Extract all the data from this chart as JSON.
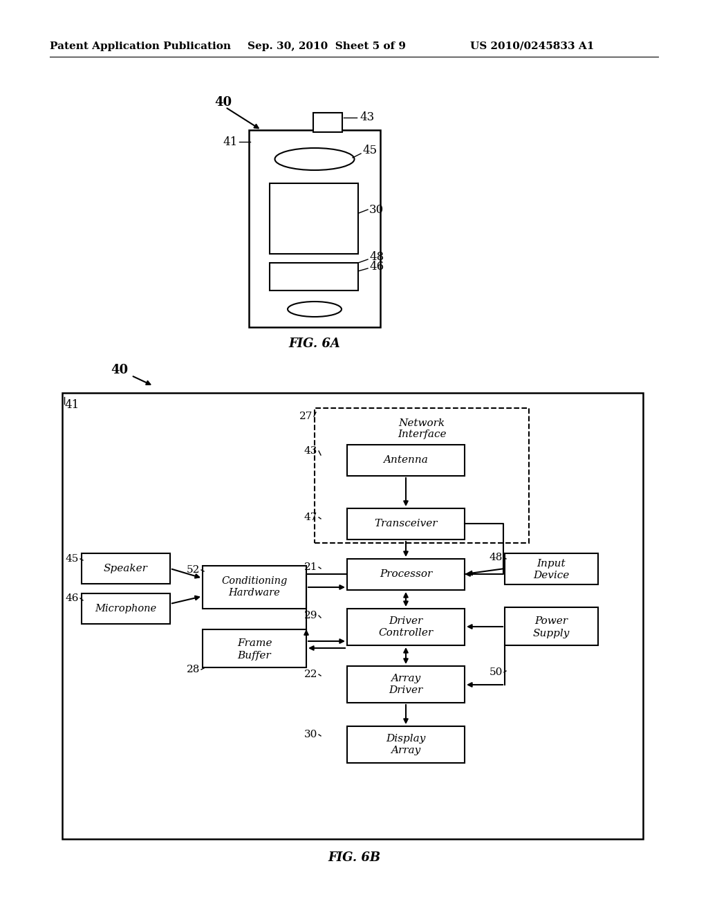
{
  "bg_color": "#ffffff",
  "header_left": "Patent Application Publication",
  "header_center": "Sep. 30, 2010  Sheet 5 of 9",
  "header_right": "US 2010/0245833 A1",
  "fig6a_label": "FIG. 6A",
  "fig6b_label": "FIG. 6B"
}
